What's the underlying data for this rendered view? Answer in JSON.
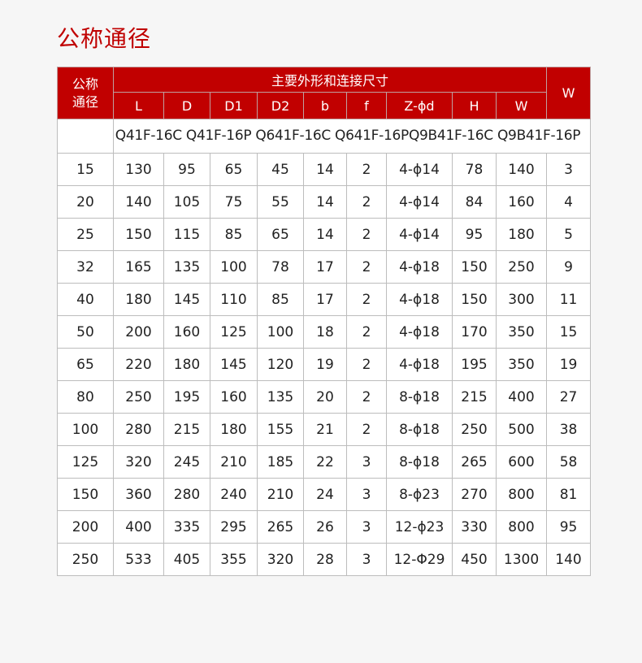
{
  "title": "公称通径",
  "header": {
    "dn": "公称\n通径",
    "group": "主要外形和连接尺寸",
    "w_outer": "W",
    "cols": [
      "L",
      "D",
      "D1",
      "D2",
      "b",
      "f",
      "Z-ϕd",
      "H",
      "W"
    ]
  },
  "models": "Q41F-16C Q41F-16P Q641F-16C Q641F-16PQ9B41F-16C Q9B41F-16P",
  "rows": [
    [
      "15",
      "130",
      "95",
      "65",
      "45",
      "14",
      "2",
      "4-ϕ14",
      "78",
      "140",
      "3"
    ],
    [
      "20",
      "140",
      "105",
      "75",
      "55",
      "14",
      "2",
      "4-ϕ14",
      "84",
      "160",
      "4"
    ],
    [
      "25",
      "150",
      "115",
      "85",
      "65",
      "14",
      "2",
      "4-ϕ14",
      "95",
      "180",
      "5"
    ],
    [
      "32",
      "165",
      "135",
      "100",
      "78",
      "17",
      "2",
      "4-ϕ18",
      "150",
      "250",
      "9"
    ],
    [
      "40",
      "180",
      "145",
      "110",
      "85",
      "17",
      "2",
      "4-ϕ18",
      "150",
      "300",
      "11"
    ],
    [
      "50",
      "200",
      "160",
      "125",
      "100",
      "18",
      "2",
      "4-ϕ18",
      "170",
      "350",
      "15"
    ],
    [
      "65",
      "220",
      "180",
      "145",
      "120",
      "19",
      "2",
      "4-ϕ18",
      "195",
      "350",
      "19"
    ],
    [
      "80",
      "250",
      "195",
      "160",
      "135",
      "20",
      "2",
      "8-ϕ18",
      "215",
      "400",
      "27"
    ],
    [
      "100",
      "280",
      "215",
      "180",
      "155",
      "21",
      "2",
      "8-ϕ18",
      "250",
      "500",
      "38"
    ],
    [
      "125",
      "320",
      "245",
      "210",
      "185",
      "22",
      "3",
      "8-ϕ18",
      "265",
      "600",
      "58"
    ],
    [
      "150",
      "360",
      "280",
      "240",
      "210",
      "24",
      "3",
      "8-ϕ23",
      "270",
      "800",
      "81"
    ],
    [
      "200",
      "400",
      "335",
      "295",
      "265",
      "26",
      "3",
      "12-ϕ23",
      "330",
      "800",
      "95"
    ],
    [
      "250",
      "533",
      "405",
      "355",
      "320",
      "28",
      "3",
      "12-Φ29",
      "450",
      "1300",
      "140"
    ]
  ],
  "colors": {
    "header": "#c10000",
    "title": "#c00000"
  }
}
